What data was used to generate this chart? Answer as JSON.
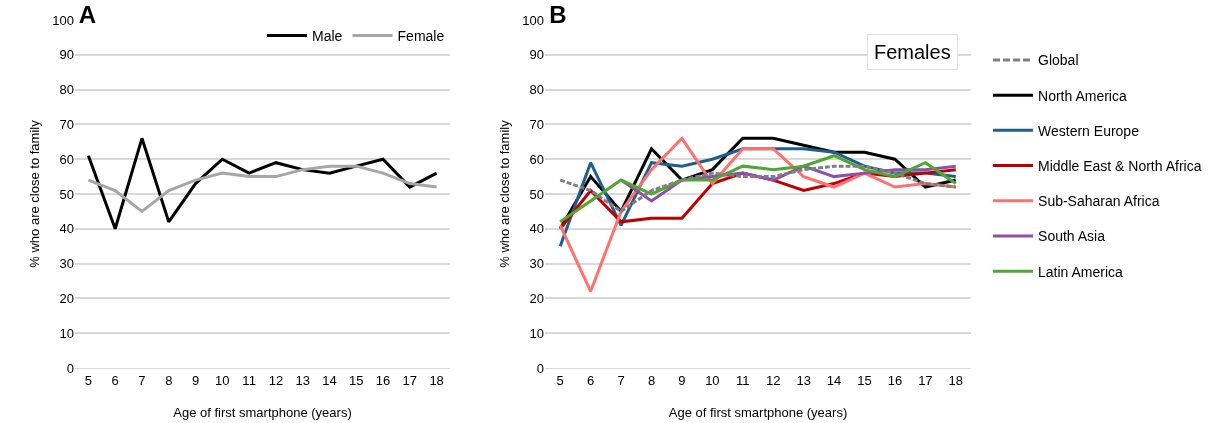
{
  "chart_data": [
    {
      "type": "line",
      "title": "A",
      "categories": [
        "5",
        "6",
        "7",
        "8",
        "9",
        "10",
        "11",
        "12",
        "13",
        "14",
        "15",
        "16",
        "17",
        "18"
      ],
      "xlabel": "Age of first smartphone (years)",
      "ylabel": "% who are close to family",
      "ylim": [
        0,
        100
      ],
      "yticks": [
        0,
        10,
        20,
        30,
        40,
        50,
        60,
        70,
        80,
        90,
        100
      ],
      "grid": "y",
      "legend": "top right",
      "marker": "none",
      "series": [
        {
          "name": "Male",
          "color": "#000000",
          "values": [
            61,
            40,
            66,
            42,
            53,
            60,
            56,
            59,
            57,
            56,
            58,
            60,
            52,
            56
          ]
        },
        {
          "name": "Female",
          "color": "#a6a6a6",
          "values": [
            54,
            51,
            45,
            51,
            54,
            56,
            55,
            55,
            57,
            58,
            58,
            56,
            53,
            52
          ]
        }
      ]
    },
    {
      "type": "line",
      "title": "B",
      "categories": [
        "5",
        "6",
        "7",
        "8",
        "9",
        "10",
        "11",
        "12",
        "13",
        "14",
        "15",
        "16",
        "17",
        "18"
      ],
      "xlabel": "Age of first smartphone (years)",
      "ylabel": "% who are close to family",
      "ylim": [
        0,
        100
      ],
      "yticks": [
        0,
        10,
        20,
        30,
        40,
        50,
        60,
        70,
        80,
        90,
        100
      ],
      "grid": "y",
      "legend": "right",
      "marker": "none",
      "annotations": [
        "Females"
      ],
      "series": [
        {
          "name": "Global",
          "color": "#7f7f7f",
          "line_style": "dashed",
          "values": [
            54,
            51,
            45,
            51,
            54,
            56,
            55,
            55,
            57,
            58,
            58,
            56,
            53,
            52
          ]
        },
        {
          "name": "North America",
          "color": "#000000",
          "values": [
            40,
            55,
            45,
            63,
            54,
            57,
            66,
            66,
            64,
            62,
            62,
            60,
            52,
            54
          ]
        },
        {
          "name": "Western Europe",
          "color": "#1f5f8b",
          "values": [
            35,
            59,
            41,
            59,
            58,
            60,
            63,
            63,
            63,
            62,
            58,
            56,
            56,
            55
          ]
        },
        {
          "name": "Middle East & North Africa",
          "color": "#c00000",
          "values": [
            40,
            51,
            42,
            43,
            43,
            53,
            56,
            54,
            51,
            53,
            56,
            55,
            56,
            57
          ]
        },
        {
          "name": "Sub-Saharan Africa",
          "color": "#ff7070",
          "values": [
            41,
            22,
            45,
            57,
            66,
            53,
            63,
            63,
            55,
            52,
            56,
            52,
            53,
            52
          ]
        },
        {
          "name": "South Asia",
          "color": "#8e4fa8",
          "values": [
            null,
            null,
            54,
            48,
            54,
            55,
            56,
            54,
            58,
            55,
            56,
            57,
            57,
            58
          ]
        },
        {
          "name": "Latin America",
          "color": "#4ea72e",
          "values": [
            42,
            48,
            54,
            50,
            54,
            54,
            58,
            57,
            58,
            61,
            57,
            55,
            59,
            53
          ]
        }
      ]
    }
  ]
}
